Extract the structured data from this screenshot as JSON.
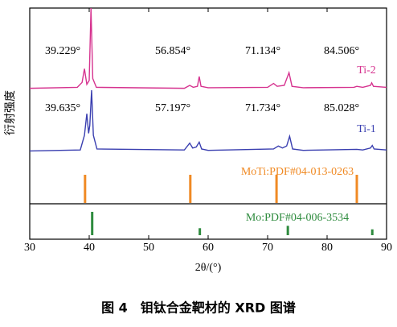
{
  "chart_data": {
    "type": "line",
    "caption": "图 4　钼钛合金靶材的 XRD 图谱",
    "x_label": "2θ/(°)",
    "y_label": "衍射强度",
    "xlim": [
      30,
      90
    ],
    "xticks": [
      30,
      40,
      50,
      60,
      70,
      80,
      90
    ],
    "ylim": [
      0,
      100
    ],
    "series": [
      {
        "name": "Ti-2",
        "color": "#d6338f",
        "x": [
          30,
          38,
          38.8,
          39.2,
          39.6,
          40.0,
          40.3,
          40.6,
          41.2,
          56,
          56.9,
          57.5,
          58.2,
          58.5,
          58.8,
          60,
          70,
          71,
          71.6,
          72.8,
          73.6,
          74.1,
          76,
          84.5,
          85,
          86,
          87.3,
          87.5,
          87.8,
          90
        ],
        "values": [
          59,
          59.5,
          62,
          69,
          61,
          63,
          100,
          64,
          59.5,
          59,
          60.5,
          59.5,
          60,
          65,
          60,
          59.3,
          59.5,
          61.5,
          60,
          60.5,
          67,
          60,
          59.3,
          59.5,
          60,
          59.5,
          60.5,
          61.8,
          60,
          59.5
        ],
        "peak_labels": [
          {
            "value": 39.229,
            "label": "39.229°"
          },
          {
            "value": 56.854,
            "label": "56.854°"
          },
          {
            "value": 71.134,
            "label": "71.134°"
          },
          {
            "value": 84.506,
            "label": "84.506°"
          }
        ]
      },
      {
        "name": "Ti-1",
        "color": "#3a3fb0",
        "x": [
          30,
          38.5,
          39.2,
          39.6,
          39.9,
          40.1,
          40.4,
          40.7,
          41.3,
          56,
          56.9,
          57.4,
          58,
          58.5,
          58.9,
          60,
          71,
          71.8,
          72.5,
          73.2,
          73.7,
          74.2,
          76,
          85,
          86,
          87.3,
          87.6,
          87.9,
          90
        ],
        "values": [
          27,
          27.5,
          35,
          46,
          36,
          40,
          58,
          35,
          28,
          27.5,
          31,
          28.5,
          29,
          31.5,
          28,
          27.3,
          28,
          29.5,
          28.5,
          29.5,
          34.5,
          28,
          27.3,
          27.8,
          27.5,
          28.5,
          29.8,
          28,
          27.5
        ],
        "peak_labels": [
          {
            "value": 39.635,
            "label": "39.635°"
          },
          {
            "value": 57.197,
            "label": "57.197°"
          },
          {
            "value": 71.734,
            "label": "71.734°"
          },
          {
            "value": 85.028,
            "label": "85.028°"
          }
        ]
      }
    ],
    "references": [
      {
        "name": "MoTi:PDF#04-013-0263",
        "color": "#f08a24",
        "positions": [
          39.3,
          57.0,
          71.5,
          85.0
        ],
        "intensities": [
          100,
          100,
          100,
          100
        ]
      },
      {
        "name": "Mo:PDF#04-006-3534",
        "color": "#2e8b3e",
        "positions": [
          40.5,
          58.6,
          73.4,
          87.6
        ],
        "intensities": [
          100,
          30,
          40,
          25
        ]
      }
    ]
  }
}
